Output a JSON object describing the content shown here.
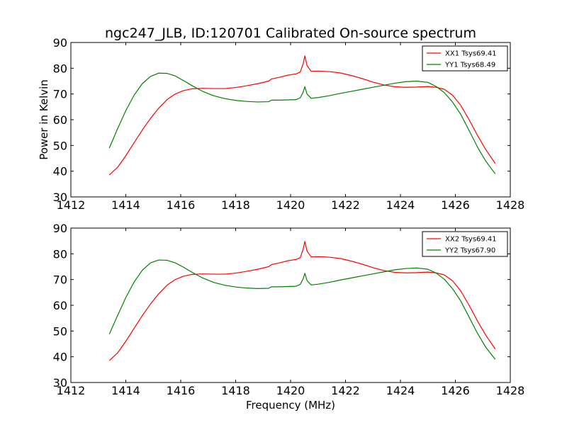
{
  "title": "ngc247_JLB, ID:120701 Calibrated On-source spectrum",
  "ylabel": "Power in Kelvin",
  "xlabel": "Frequency (MHz)",
  "colors": {
    "xx": "#ff0000",
    "yy": "#008000"
  },
  "chart_data": [
    {
      "type": "line",
      "xlim": [
        1412,
        1428
      ],
      "ylim": [
        30,
        90
      ],
      "xticks": [
        "1412",
        "1414",
        "1416",
        "1418",
        "1420",
        "1422",
        "1424",
        "1426",
        "1428"
      ],
      "yticks": [
        "30",
        "40",
        "50",
        "60",
        "70",
        "80",
        "90"
      ],
      "legend_position": "top-right",
      "series": [
        {
          "name": "XX1 Tsys69.41",
          "color": "#ff0000",
          "x": [
            1413.4,
            1413.7,
            1414.0,
            1414.3,
            1414.6,
            1414.9,
            1415.2,
            1415.5,
            1415.8,
            1416.1,
            1416.4,
            1416.8,
            1417.2,
            1417.6,
            1418.0,
            1418.4,
            1418.8,
            1419.2,
            1419.3,
            1419.6,
            1419.9,
            1420.2,
            1420.35,
            1420.45,
            1420.52,
            1420.6,
            1420.75,
            1421.0,
            1421.4,
            1421.8,
            1422.2,
            1422.6,
            1423.0,
            1423.4,
            1423.8,
            1424.2,
            1424.6,
            1425.0,
            1425.3,
            1425.6,
            1425.9,
            1426.2,
            1426.5,
            1426.8,
            1427.1,
            1427.45
          ],
          "y": [
            38.5,
            41.5,
            46.0,
            51.0,
            56.0,
            60.5,
            64.5,
            67.8,
            70.0,
            71.3,
            72.0,
            72.2,
            72.1,
            72.1,
            72.5,
            73.2,
            74.0,
            75.0,
            75.8,
            76.5,
            77.3,
            77.8,
            78.5,
            81.5,
            84.8,
            81.0,
            78.8,
            78.9,
            78.7,
            78.2,
            77.2,
            76.0,
            74.6,
            73.5,
            72.8,
            72.6,
            72.7,
            72.9,
            72.6,
            71.8,
            69.5,
            65.5,
            60.0,
            54.0,
            48.5,
            43.0
          ]
        },
        {
          "name": "YY1 Tsys68.49",
          "color": "#008000",
          "x": [
            1413.4,
            1413.7,
            1414.0,
            1414.3,
            1414.6,
            1414.9,
            1415.2,
            1415.5,
            1415.8,
            1416.1,
            1416.4,
            1416.8,
            1417.2,
            1417.6,
            1418.0,
            1418.4,
            1418.8,
            1419.2,
            1419.3,
            1419.6,
            1419.9,
            1420.2,
            1420.35,
            1420.45,
            1420.52,
            1420.6,
            1420.75,
            1421.0,
            1421.4,
            1421.8,
            1422.2,
            1422.6,
            1423.0,
            1423.4,
            1423.8,
            1424.2,
            1424.6,
            1425.0,
            1425.3,
            1425.6,
            1425.9,
            1426.2,
            1426.5,
            1426.8,
            1427.1,
            1427.45
          ],
          "y": [
            49.0,
            56.5,
            63.5,
            69.5,
            74.0,
            76.8,
            78.1,
            78.0,
            77.0,
            75.2,
            73.3,
            71.0,
            69.3,
            68.2,
            67.5,
            67.1,
            66.9,
            67.0,
            67.6,
            67.6,
            67.7,
            67.8,
            68.5,
            70.5,
            72.8,
            70.0,
            68.3,
            68.6,
            69.3,
            70.2,
            71.0,
            71.8,
            72.6,
            73.4,
            74.2,
            74.8,
            75.0,
            74.5,
            72.9,
            70.5,
            66.8,
            62.0,
            55.8,
            49.5,
            44.0,
            39.0
          ]
        }
      ]
    },
    {
      "type": "line",
      "xlim": [
        1412,
        1428
      ],
      "ylim": [
        30,
        90
      ],
      "xticks": [
        "1412",
        "1414",
        "1416",
        "1418",
        "1420",
        "1422",
        "1424",
        "1426",
        "1428"
      ],
      "yticks": [
        "30",
        "40",
        "50",
        "60",
        "70",
        "80",
        "90"
      ],
      "legend_position": "top-right",
      "series": [
        {
          "name": "XX2 Tsys69.41",
          "color": "#ff0000",
          "x": [
            1413.4,
            1413.7,
            1414.0,
            1414.3,
            1414.6,
            1414.9,
            1415.2,
            1415.5,
            1415.8,
            1416.1,
            1416.4,
            1416.8,
            1417.2,
            1417.6,
            1418.0,
            1418.4,
            1418.8,
            1419.2,
            1419.3,
            1419.6,
            1419.9,
            1420.2,
            1420.35,
            1420.45,
            1420.52,
            1420.6,
            1420.75,
            1421.0,
            1421.4,
            1421.8,
            1422.2,
            1422.6,
            1423.0,
            1423.4,
            1423.8,
            1424.2,
            1424.6,
            1425.0,
            1425.3,
            1425.6,
            1425.9,
            1426.2,
            1426.5,
            1426.8,
            1427.1,
            1427.45
          ],
          "y": [
            38.5,
            41.5,
            46.0,
            51.0,
            56.0,
            60.5,
            64.5,
            67.8,
            70.0,
            71.3,
            72.0,
            72.2,
            72.1,
            72.1,
            72.5,
            73.2,
            74.0,
            75.0,
            75.8,
            76.5,
            77.3,
            77.8,
            78.5,
            81.5,
            84.8,
            81.0,
            78.8,
            78.9,
            78.7,
            78.2,
            77.2,
            76.0,
            74.6,
            73.5,
            72.8,
            72.6,
            72.7,
            72.9,
            72.6,
            71.8,
            69.5,
            65.5,
            60.0,
            54.0,
            48.5,
            43.0
          ]
        },
        {
          "name": "YY2 Tsys67.90",
          "color": "#008000",
          "x": [
            1413.4,
            1413.7,
            1414.0,
            1414.3,
            1414.6,
            1414.9,
            1415.2,
            1415.5,
            1415.8,
            1416.1,
            1416.4,
            1416.8,
            1417.2,
            1417.6,
            1418.0,
            1418.4,
            1418.8,
            1419.2,
            1419.3,
            1419.6,
            1419.9,
            1420.2,
            1420.35,
            1420.45,
            1420.52,
            1420.6,
            1420.75,
            1421.0,
            1421.4,
            1421.8,
            1422.2,
            1422.6,
            1423.0,
            1423.4,
            1423.8,
            1424.2,
            1424.6,
            1425.0,
            1425.3,
            1425.6,
            1425.9,
            1426.2,
            1426.5,
            1426.8,
            1427.1,
            1427.45
          ],
          "y": [
            48.8,
            56.0,
            63.0,
            69.0,
            73.6,
            76.5,
            77.6,
            77.5,
            76.5,
            74.8,
            72.9,
            70.6,
            68.9,
            67.8,
            67.1,
            66.7,
            66.5,
            66.6,
            67.2,
            67.2,
            67.3,
            67.4,
            68.1,
            70.1,
            72.4,
            69.6,
            67.9,
            68.2,
            68.9,
            69.8,
            70.6,
            71.4,
            72.2,
            73.0,
            73.8,
            74.3,
            74.5,
            74.0,
            72.5,
            70.1,
            66.4,
            61.6,
            55.4,
            49.2,
            43.8,
            39.0
          ]
        }
      ]
    }
  ]
}
